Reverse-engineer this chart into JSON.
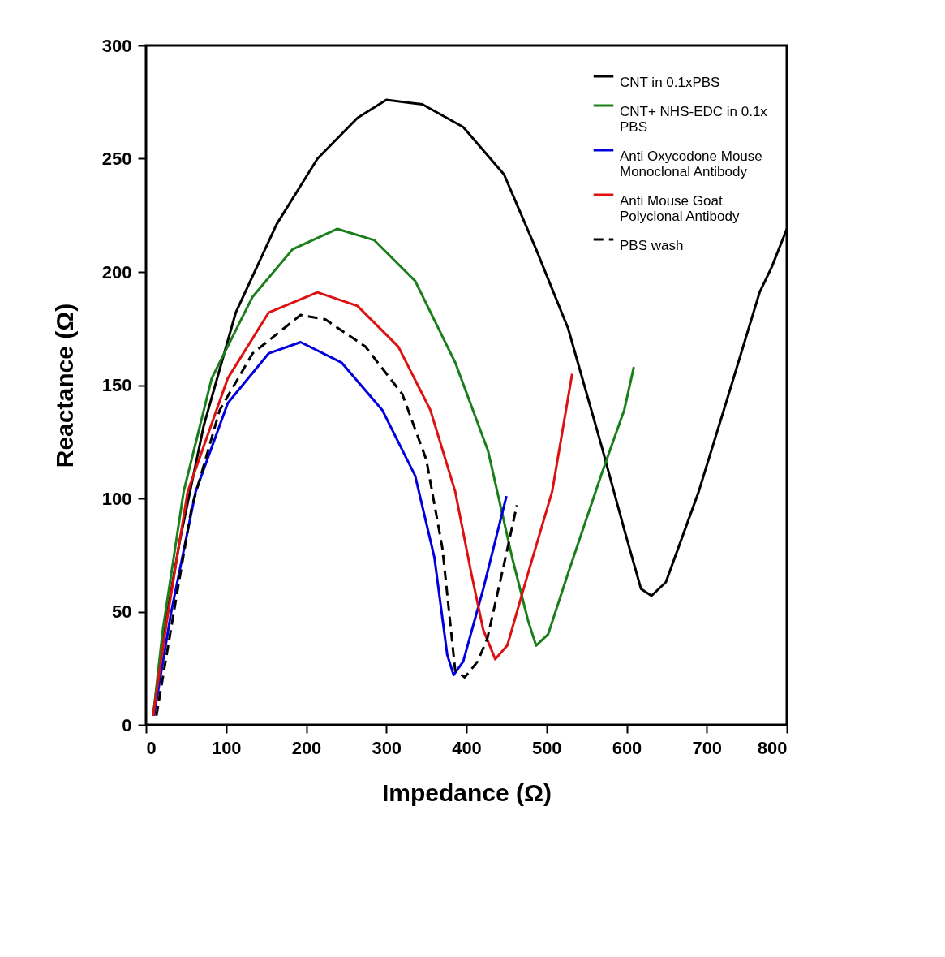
{
  "chart_data": {
    "type": "line",
    "xlabel": "Impedance (Ω)",
    "ylabel": "Reactance (Ω)",
    "xlim": [
      0,
      800
    ],
    "ylim": [
      0,
      300
    ],
    "xticks": [
      0,
      100,
      200,
      300,
      400,
      500,
      600,
      700,
      800
    ],
    "yticks": [
      0,
      50,
      100,
      150,
      200,
      250,
      300
    ],
    "grid": false,
    "legend": "top right",
    "marker": "none",
    "series": [
      {
        "name": "CNT in 0.1xPBS",
        "color": "#000000",
        "line_style": "solid",
        "x": [
          9,
          21,
          42,
          72,
          112,
          163,
          214,
          264,
          300,
          345,
          396,
          447,
          487,
          527,
          568,
          598,
          618,
          631,
          649,
          690,
          730,
          766,
          781,
          800
        ],
        "values": [
          4,
          38,
          81,
          132,
          182,
          221,
          250,
          268,
          276,
          274,
          264,
          243,
          210,
          175,
          124,
          85,
          60,
          57,
          63,
          103,
          149,
          191,
          202,
          219
        ]
      },
      {
        "name": "CNT+ NHS-EDC in 0.1x PBS",
        "color": "#1a7f1a",
        "line_style": "solid",
        "x": [
          9,
          21,
          47,
          82,
          133,
          183,
          239,
          285,
          336,
          386,
          427,
          457,
          477,
          487,
          502,
          527,
          568,
          597,
          609
        ],
        "values": [
          4,
          42,
          103,
          153,
          189,
          210,
          219,
          214,
          196,
          160,
          121,
          74,
          46,
          35,
          40,
          67,
          110,
          139,
          158
        ]
      },
      {
        "name": "Anti Oxycodone Mouse Monoclonal Antibody",
        "color": "#0000dd",
        "line_style": "solid",
        "x": [
          10,
          31,
          62,
          102,
          153,
          193,
          244,
          295,
          336,
          360,
          376,
          384,
          396,
          421,
          450
        ],
        "values": [
          4,
          49,
          103,
          142,
          164,
          169,
          160,
          139,
          110,
          74,
          31,
          22,
          28,
          60,
          101
        ]
      },
      {
        "name": "Anti Mouse Goat Polyclonal Antibody",
        "color": "#dd1111",
        "line_style": "solid",
        "x": [
          9,
          26,
          52,
          102,
          153,
          214,
          264,
          315,
          355,
          386,
          406,
          421,
          436,
          451,
          477,
          507,
          532
        ],
        "values": [
          4,
          46,
          103,
          153,
          182,
          191,
          185,
          167,
          139,
          103,
          67,
          42,
          29,
          35,
          67,
          103,
          155
        ]
      },
      {
        "name": "PBS wash",
        "color": "#000000",
        "line_style": "dashed",
        "x": [
          13,
          31,
          57,
          92,
          133,
          193,
          224,
          274,
          320,
          350,
          370,
          386,
          398,
          414,
          426,
          447,
          463
        ],
        "values": [
          4,
          42,
          96,
          139,
          164,
          181,
          179,
          167,
          146,
          117,
          78,
          24,
          21,
          28,
          38,
          71,
          97
        ]
      }
    ]
  }
}
